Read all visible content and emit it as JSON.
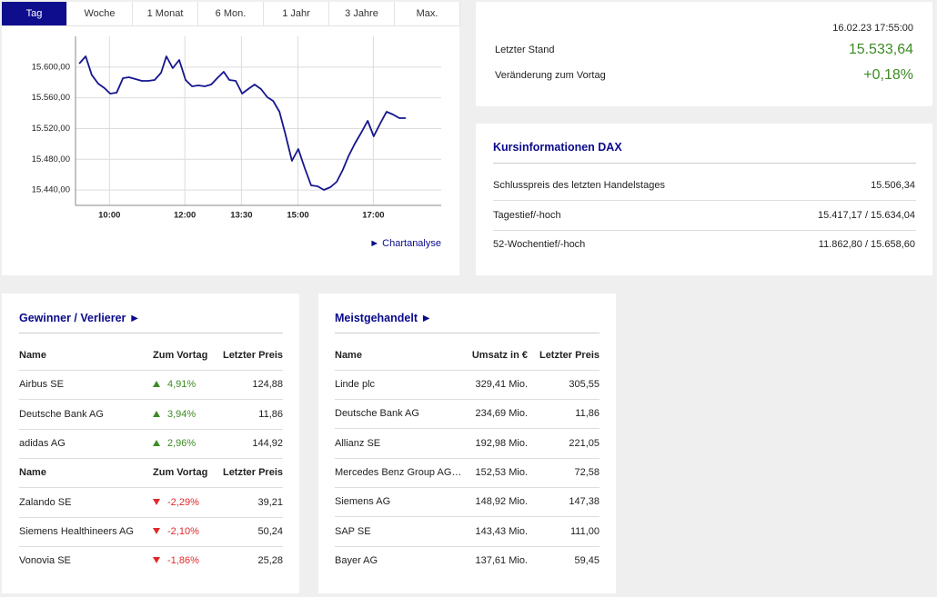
{
  "tabs": [
    {
      "label": "Tag",
      "active": true
    },
    {
      "label": "Woche",
      "active": false
    },
    {
      "label": "1 Monat",
      "active": false
    },
    {
      "label": "6 Mon.",
      "active": false
    },
    {
      "label": "1 Jahr",
      "active": false
    },
    {
      "label": "3 Jahre",
      "active": false
    },
    {
      "label": "Max.",
      "active": false
    }
  ],
  "chart_data": {
    "type": "line",
    "color": "#15158f",
    "grid": true,
    "x": [
      9.2,
      9.37,
      9.53,
      9.7,
      9.87,
      10.02,
      10.19,
      10.36,
      10.52,
      10.69,
      10.86,
      11.03,
      11.2,
      11.37,
      11.51,
      11.68,
      11.85,
      12.02,
      12.19,
      12.36,
      12.53,
      12.7,
      12.86,
      13.03,
      13.18,
      13.35,
      13.52,
      13.68,
      13.85,
      14.02,
      14.19,
      14.34,
      14.51,
      14.67,
      14.84,
      15.01,
      15.18,
      15.35,
      15.52,
      15.69,
      15.86,
      16.03,
      16.19,
      16.34,
      16.51,
      16.68,
      16.85,
      17.01,
      17.18,
      17.35,
      17.52,
      17.69,
      17.86
    ],
    "values": [
      15604.5,
      15614,
      15590,
      15578.5,
      15572.6,
      15565.5,
      15566.7,
      15585.6,
      15586.8,
      15584.4,
      15582,
      15582,
      15583.2,
      15592.7,
      15614,
      15598.6,
      15609.2,
      15583.2,
      15575,
      15576.1,
      15575,
      15577.3,
      15585.6,
      15593.9,
      15583.2,
      15582,
      15565.5,
      15571.4,
      15577.3,
      15571.4,
      15560.8,
      15556,
      15541.8,
      15512.3,
      15478,
      15493.3,
      15468.5,
      15446,
      15444.8,
      15440.1,
      15443.7,
      15450.8,
      15466.1,
      15483.9,
      15500.4,
      15514.6,
      15530,
      15509.9,
      15526.5,
      15541.8,
      15538.3,
      15533.5,
      15533.5
    ],
    "xlim": [
      9.1,
      18.8
    ],
    "ylim": [
      15420,
      15640
    ],
    "xticks": [
      {
        "value": 10,
        "label": "10:00"
      },
      {
        "value": 12,
        "label": "12:00"
      },
      {
        "value": 13.5,
        "label": "13:30"
      },
      {
        "value": 15,
        "label": "15:00"
      },
      {
        "value": 17,
        "label": "17:00"
      }
    ],
    "yticks": [
      {
        "value": 15440,
        "label": "15.440,00"
      },
      {
        "value": 15480,
        "label": "15.480,00"
      },
      {
        "value": 15520,
        "label": "15.520,00"
      },
      {
        "value": 15560,
        "label": "15.560,00"
      },
      {
        "value": 15600,
        "label": "15.600,00"
      }
    ]
  },
  "chart_link": "► Chartanalyse",
  "quote": {
    "timestamp": "16.02.23 17:55:00",
    "last_label": "Letzter Stand",
    "last_value": "15.533,64",
    "change_label": "Veränderung zum Vortag",
    "change_value": "+0,18%"
  },
  "kursinfo": {
    "title": "Kursinformationen DAX",
    "rows": [
      [
        "Schlusspreis des letzten Handelstages",
        "15.506,34"
      ],
      [
        "Tagestief/-hoch",
        "15.417,17 / 15.634,04"
      ],
      [
        "52-Wochentief/-hoch",
        "11.862,80 / 15.658,60"
      ]
    ]
  },
  "winners": {
    "title": "Gewinner / Verlierer ►",
    "groups": [
      {
        "header": [
          "Name",
          "Zum Vortag",
          "Letzter Preis"
        ],
        "rows": [
          {
            "name": "Airbus SE",
            "change": "4,91%",
            "price": "124,88",
            "direction": "up"
          },
          {
            "name": "Deutsche Bank AG",
            "change": "3,94%",
            "price": "11,86",
            "direction": "up"
          },
          {
            "name": "adidas AG",
            "change": "2,96%",
            "price": "144,92",
            "direction": "up"
          }
        ]
      },
      {
        "header": [
          "Name",
          "Zum Vortag",
          "Letzter Preis"
        ],
        "rows": [
          {
            "name": "Zalando SE",
            "change": "-2,29%",
            "price": "39,21",
            "direction": "down"
          },
          {
            "name": "Siemens Healthineers AG",
            "change": "-2,10%",
            "price": "50,24",
            "direction": "down"
          },
          {
            "name": "Vonovia SE",
            "change": "-1,86%",
            "price": "25,28",
            "direction": "down"
          }
        ]
      }
    ]
  },
  "most_traded": {
    "title": "Meistgehandelt ►",
    "header": [
      "Name",
      "Umsatz in €",
      "Letzter Preis"
    ],
    "rows": [
      [
        "Linde plc",
        "329,41 Mio.",
        "305,55"
      ],
      [
        "Deutsche Bank AG",
        "234,69 Mio.",
        "11,86"
      ],
      [
        "Allianz SE",
        "192,98 Mio.",
        "221,05"
      ],
      [
        "Mercedes Benz Group AG…",
        "152,53 Mio.",
        "72,58"
      ],
      [
        "Siemens AG",
        "148,92 Mio.",
        "147,38"
      ],
      [
        "SAP SE",
        "143,43 Mio.",
        "111,00"
      ],
      [
        "Bayer AG",
        "137,61 Mio.",
        "59,45"
      ]
    ]
  }
}
